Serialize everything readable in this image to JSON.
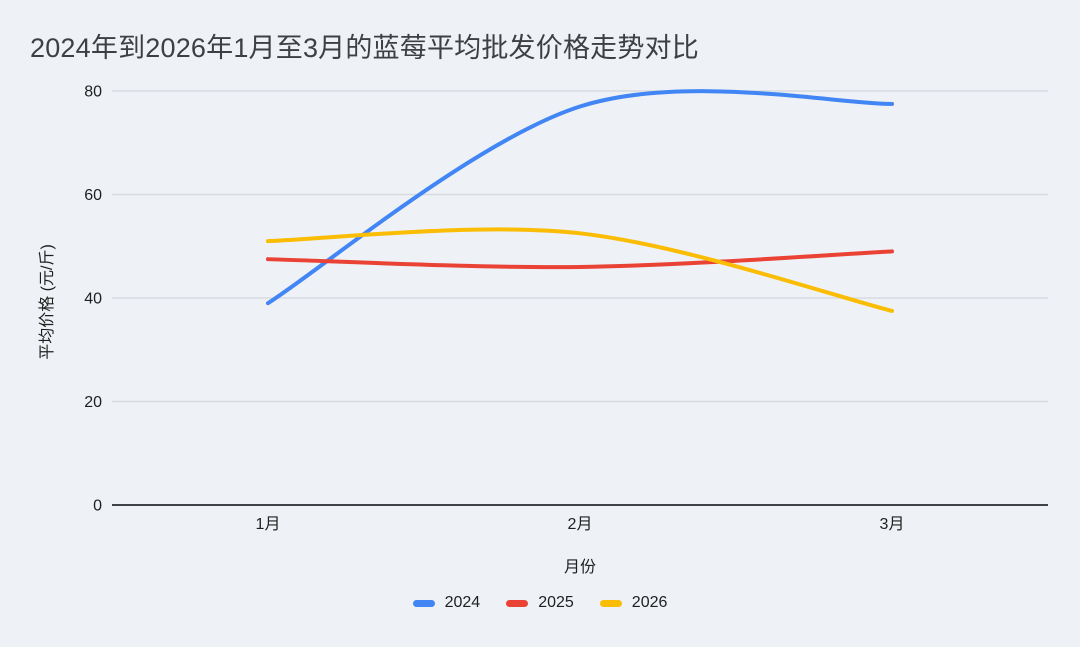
{
  "title": "2024年到2026年1月至3月的蓝莓平均批发价格走势对比",
  "colors": {
    "background": "#eef1f6",
    "gridline": "#d7dbe0",
    "zero_axis": "#3f4246",
    "title_text": "#3c4043",
    "tick_text": "#1f1f1f"
  },
  "chart_data": {
    "type": "line",
    "title": "2024年到2026年1月至3月的蓝莓平均批发价格走势对比",
    "categories": [
      "1月",
      "2月",
      "3月"
    ],
    "series": [
      {
        "name": "2024",
        "color": "#4285f4",
        "values": [
          39,
          77,
          77.5
        ]
      },
      {
        "name": "2025",
        "color": "#ea4335",
        "values": [
          47.5,
          46,
          49
        ]
      },
      {
        "name": "2026",
        "color": "#fbbc04",
        "values": [
          51,
          52.5,
          37.5
        ]
      }
    ],
    "xlabel": "月份",
    "ylabel": "平均价格 (元/斤)",
    "ylim": [
      0,
      80
    ],
    "yticks": [
      0,
      20,
      40,
      60,
      80
    ],
    "grid": true,
    "smooth": true,
    "legend_position": "bottom"
  }
}
